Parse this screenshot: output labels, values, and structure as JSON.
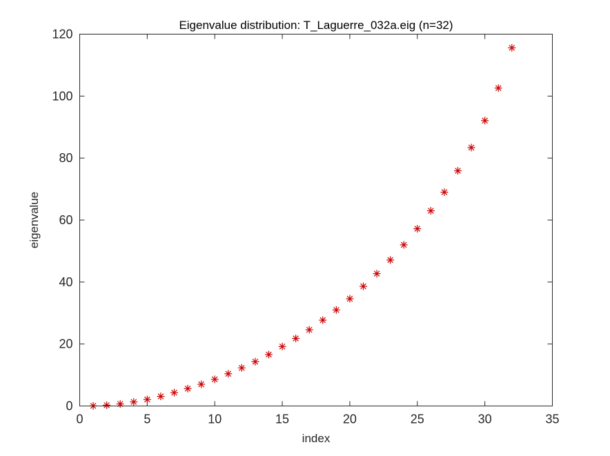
{
  "chart_data": {
    "type": "scatter",
    "title": "Eigenvalue distribution: T_Laguerre_032a.eig (n=32)",
    "xlabel": "index",
    "ylabel": "eigenvalue",
    "xlim": [
      0,
      35
    ],
    "ylim": [
      0,
      120
    ],
    "xticks": [
      0,
      5,
      10,
      15,
      20,
      25,
      30,
      35
    ],
    "yticks": [
      0,
      20,
      40,
      60,
      80,
      100,
      120
    ],
    "grid": false,
    "marker": "asterisk",
    "marker_color": "#cc0000",
    "x": [
      1,
      2,
      3,
      4,
      5,
      6,
      7,
      8,
      9,
      10,
      11,
      12,
      13,
      14,
      15,
      16,
      17,
      18,
      19,
      20,
      21,
      22,
      23,
      24,
      25,
      26,
      27,
      28,
      29,
      30,
      31,
      32
    ],
    "y": [
      0.04,
      0.25,
      0.65,
      1.3,
      2.1,
      3.1,
      4.3,
      5.6,
      7.0,
      8.6,
      10.4,
      12.3,
      14.3,
      16.6,
      19.2,
      21.8,
      24.6,
      27.7,
      31.0,
      34.6,
      38.6,
      42.7,
      47.1,
      52.0,
      57.2,
      63.0,
      69.0,
      75.9,
      83.4,
      92.1,
      102.6,
      115.6
    ]
  }
}
